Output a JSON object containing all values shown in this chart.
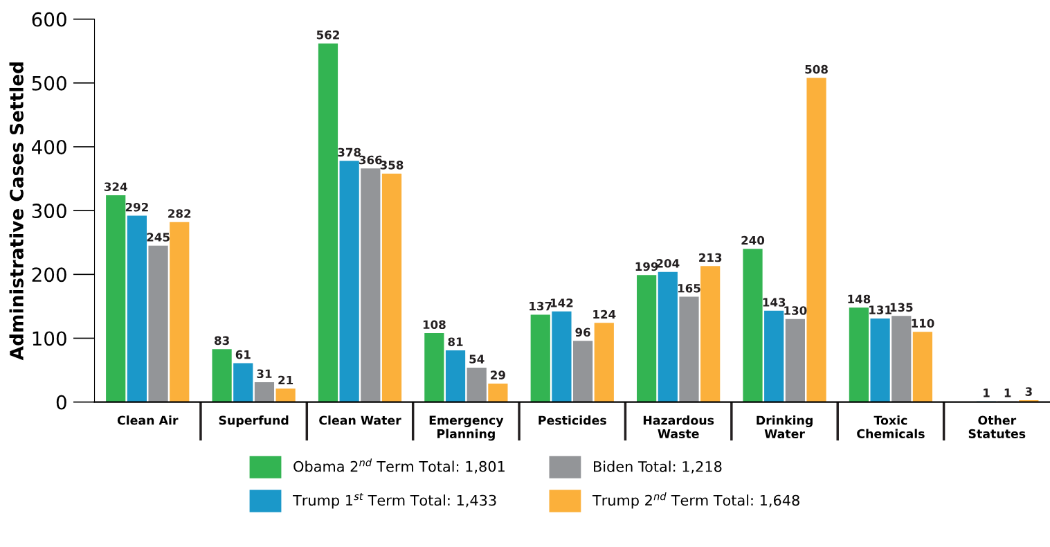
{
  "chart_data": {
    "type": "bar",
    "ylabel": "Administrative Cases Settled",
    "categories": [
      "Clean Air",
      "Superfund",
      "Clean Water",
      "Emergency\nPlanning",
      "Pesticides",
      "Hazardous\nWaste",
      "Drinking\nWater",
      "Toxic\nChemicals",
      "Other\nStatutes"
    ],
    "series": [
      {
        "name": "Obama 2$^{nd}$ Term Total: 1,801",
        "color": "#33b452",
        "values": [
          324,
          83,
          562,
          108,
          137,
          199,
          240,
          148,
          null
        ]
      },
      {
        "name": "Trump 1$^{st}$ Term Total: 1,433",
        "color": "#1b98c9",
        "values": [
          292,
          61,
          378,
          81,
          142,
          204,
          143,
          131,
          1
        ]
      },
      {
        "name": "Biden Total: 1,218",
        "color": "#939598",
        "values": [
          245,
          31,
          366,
          54,
          96,
          165,
          130,
          135,
          1
        ]
      },
      {
        "name": "Trump 2$^{nd}$ Term Total: 1,648",
        "color": "#fbb03b",
        "values": [
          282,
          21,
          358,
          29,
          124,
          213,
          508,
          110,
          3
        ]
      }
    ],
    "ylim": [
      0,
      600
    ],
    "yticks": [
      0,
      100,
      200,
      300,
      400,
      500,
      600
    ],
    "data_labels": true,
    "grid": false,
    "legend": "bottom"
  }
}
